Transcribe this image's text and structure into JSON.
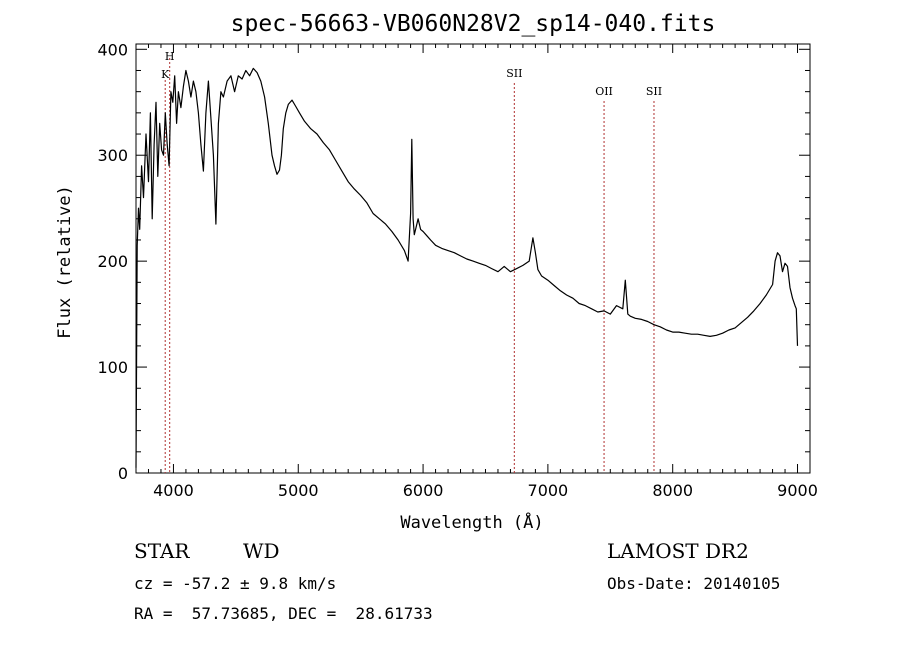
{
  "chart_data": {
    "type": "line",
    "title": "spec-56663-VB060N28V2_sp14-040.fits",
    "xlabel": "Wavelength (Å)",
    "ylabel": "Flux (relative)",
    "xlim": [
      3700,
      9100
    ],
    "ylim": [
      0,
      405
    ],
    "xticks": [
      4000,
      5000,
      6000,
      7000,
      8000,
      9000
    ],
    "yticks": [
      0,
      100,
      200,
      300,
      400
    ],
    "grid": false,
    "line_color": "#000000",
    "marker_color": "#b03030",
    "series": [
      {
        "x": [
          3700,
          3710,
          3720,
          3730,
          3745,
          3760,
          3780,
          3800,
          3815,
          3830,
          3845,
          3860,
          3875,
          3890,
          3905,
          3920,
          3935,
          3950,
          3965,
          3980,
          3995,
          4010,
          4025,
          4040,
          4060,
          4080,
          4100,
          4120,
          4140,
          4160,
          4180,
          4200,
          4220,
          4240,
          4260,
          4280,
          4300,
          4320,
          4340,
          4360,
          4380,
          4400,
          4430,
          4460,
          4490,
          4520,
          4550,
          4580,
          4610,
          4640,
          4670,
          4700,
          4730,
          4760,
          4790,
          4810,
          4830,
          4850,
          4865,
          4880,
          4900,
          4920,
          4950,
          4980,
          5010,
          5050,
          5100,
          5150,
          5200,
          5250,
          5300,
          5350,
          5400,
          5450,
          5500,
          5550,
          5600,
          5650,
          5700,
          5750,
          5800,
          5850,
          5880,
          5900,
          5910,
          5920,
          5930,
          5940,
          5960,
          5980,
          6000,
          6030,
          6060,
          6100,
          6150,
          6200,
          6250,
          6300,
          6350,
          6400,
          6450,
          6500,
          6550,
          6600,
          6650,
          6700,
          6750,
          6800,
          6850,
          6880,
          6900,
          6920,
          6950,
          7000,
          7050,
          7100,
          7150,
          7200,
          7250,
          7300,
          7350,
          7400,
          7450,
          7500,
          7550,
          7600,
          7620,
          7640,
          7660,
          7700,
          7750,
          7800,
          7850,
          7900,
          7950,
          8000,
          8050,
          8100,
          8150,
          8200,
          8250,
          8300,
          8350,
          8400,
          8450,
          8500,
          8550,
          8600,
          8650,
          8700,
          8750,
          8800,
          8820,
          8840,
          8860,
          8880,
          8900,
          8920,
          8940,
          8960,
          8980,
          8990,
          9000
        ],
        "y": [
          5,
          215,
          250,
          230,
          290,
          260,
          320,
          275,
          340,
          240,
          310,
          350,
          280,
          330,
          305,
          300,
          340,
          310,
          290,
          360,
          350,
          375,
          330,
          360,
          345,
          365,
          380,
          370,
          355,
          370,
          360,
          340,
          310,
          285,
          340,
          370,
          335,
          300,
          235,
          330,
          360,
          355,
          370,
          375,
          360,
          375,
          372,
          380,
          375,
          382,
          378,
          370,
          355,
          330,
          300,
          290,
          282,
          286,
          300,
          325,
          340,
          348,
          352,
          346,
          340,
          332,
          325,
          320,
          312,
          305,
          295,
          285,
          275,
          268,
          262,
          255,
          245,
          240,
          235,
          228,
          220,
          210,
          200,
          245,
          315,
          240,
          225,
          230,
          240,
          230,
          228,
          224,
          220,
          215,
          212,
          210,
          208,
          205,
          202,
          200,
          198,
          196,
          193,
          190,
          195,
          190,
          193,
          196,
          200,
          222,
          208,
          192,
          186,
          182,
          177,
          172,
          168,
          165,
          160,
          158,
          155,
          152,
          153,
          150,
          158,
          155,
          182,
          150,
          148,
          146,
          145,
          143,
          140,
          138,
          135,
          133,
          133,
          132,
          131,
          131,
          130,
          129,
          130,
          132,
          135,
          137,
          142,
          147,
          153,
          160,
          168,
          178,
          200,
          208,
          205,
          190,
          198,
          195,
          175,
          165,
          158,
          155,
          120
        ]
      }
    ],
    "line_markers": [
      {
        "label": "H",
        "wavelength": 3970
      },
      {
        "label": "K",
        "wavelength": 3934
      },
      {
        "label": "SII",
        "wavelength": 6731
      },
      {
        "label": "OII",
        "wavelength": 7450
      },
      {
        "label": "SII",
        "wavelength": 7850
      }
    ]
  },
  "info": {
    "object_type": "STAR",
    "subclass": "WD",
    "survey": "LAMOST DR2",
    "velocity": "cz = -57.2 ± 9.8 km/s",
    "obs_date": "Obs-Date: 20140105",
    "coords": "RA =  57.73685, DEC =  28.61733"
  }
}
